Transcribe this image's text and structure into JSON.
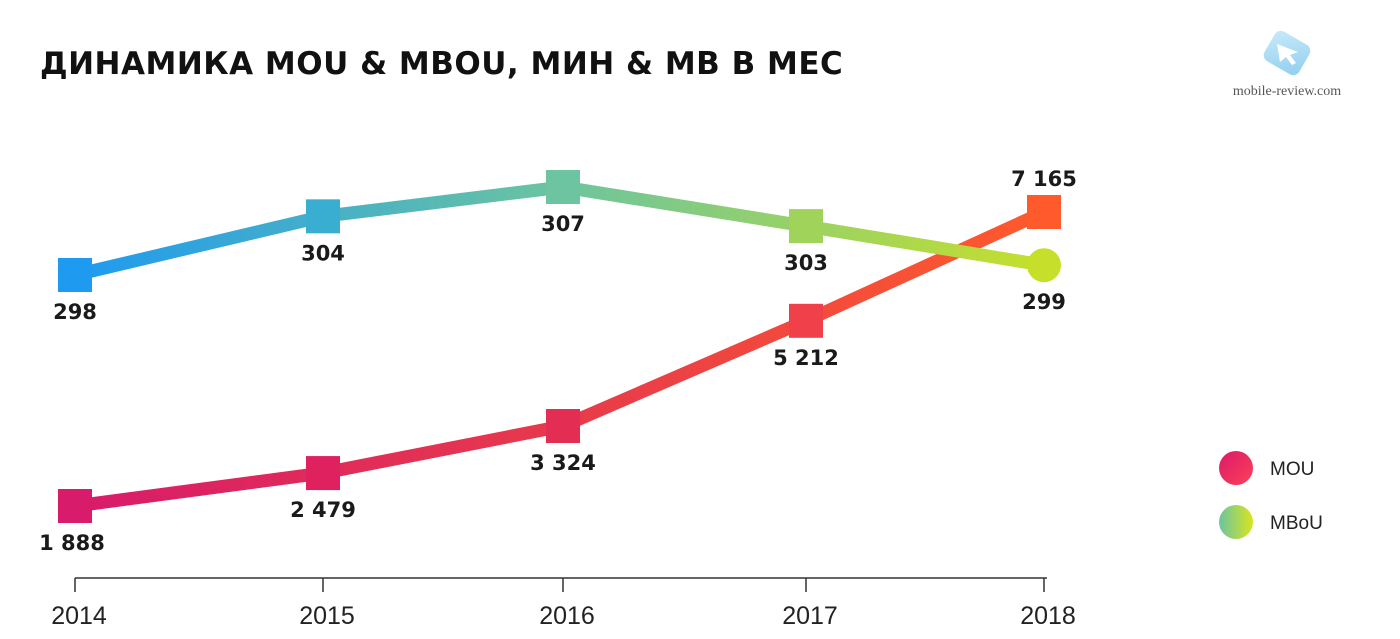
{
  "title": "ДИНАМИКА MOU & MBOU, МИН & МВ В МЕС",
  "watermark": {
    "text": "mobile-review.com",
    "icon": "arrow-cursor-icon"
  },
  "chart_data": {
    "type": "line",
    "title": "ДИНАМИКА MOU & MBOU, МИН & МВ В МЕС",
    "categories": [
      "2014",
      "2015",
      "2016",
      "2017",
      "2018"
    ],
    "series": [
      {
        "name": "MOU",
        "values": [
          1888,
          2479,
          3324,
          5212,
          7165
        ],
        "labels": [
          "1 888",
          "2 479",
          "3 324",
          "5 212",
          "7 165"
        ],
        "colors": [
          "#d81b6a",
          "#e62d50"
        ],
        "end_color": "#ff5a2c"
      },
      {
        "name": "MBoU",
        "values": [
          298,
          304,
          307,
          303,
          299
        ],
        "labels": [
          "298",
          "304",
          "307",
          "303",
          "299"
        ],
        "colors": [
          "#1e9af0",
          "#6cc4a0"
        ],
        "end_color": "#c6df2b"
      }
    ],
    "legend": {
      "position": "right",
      "items": [
        "MOU",
        "MBoU"
      ]
    },
    "xlabel": "",
    "ylabel": "",
    "grid": false
  }
}
